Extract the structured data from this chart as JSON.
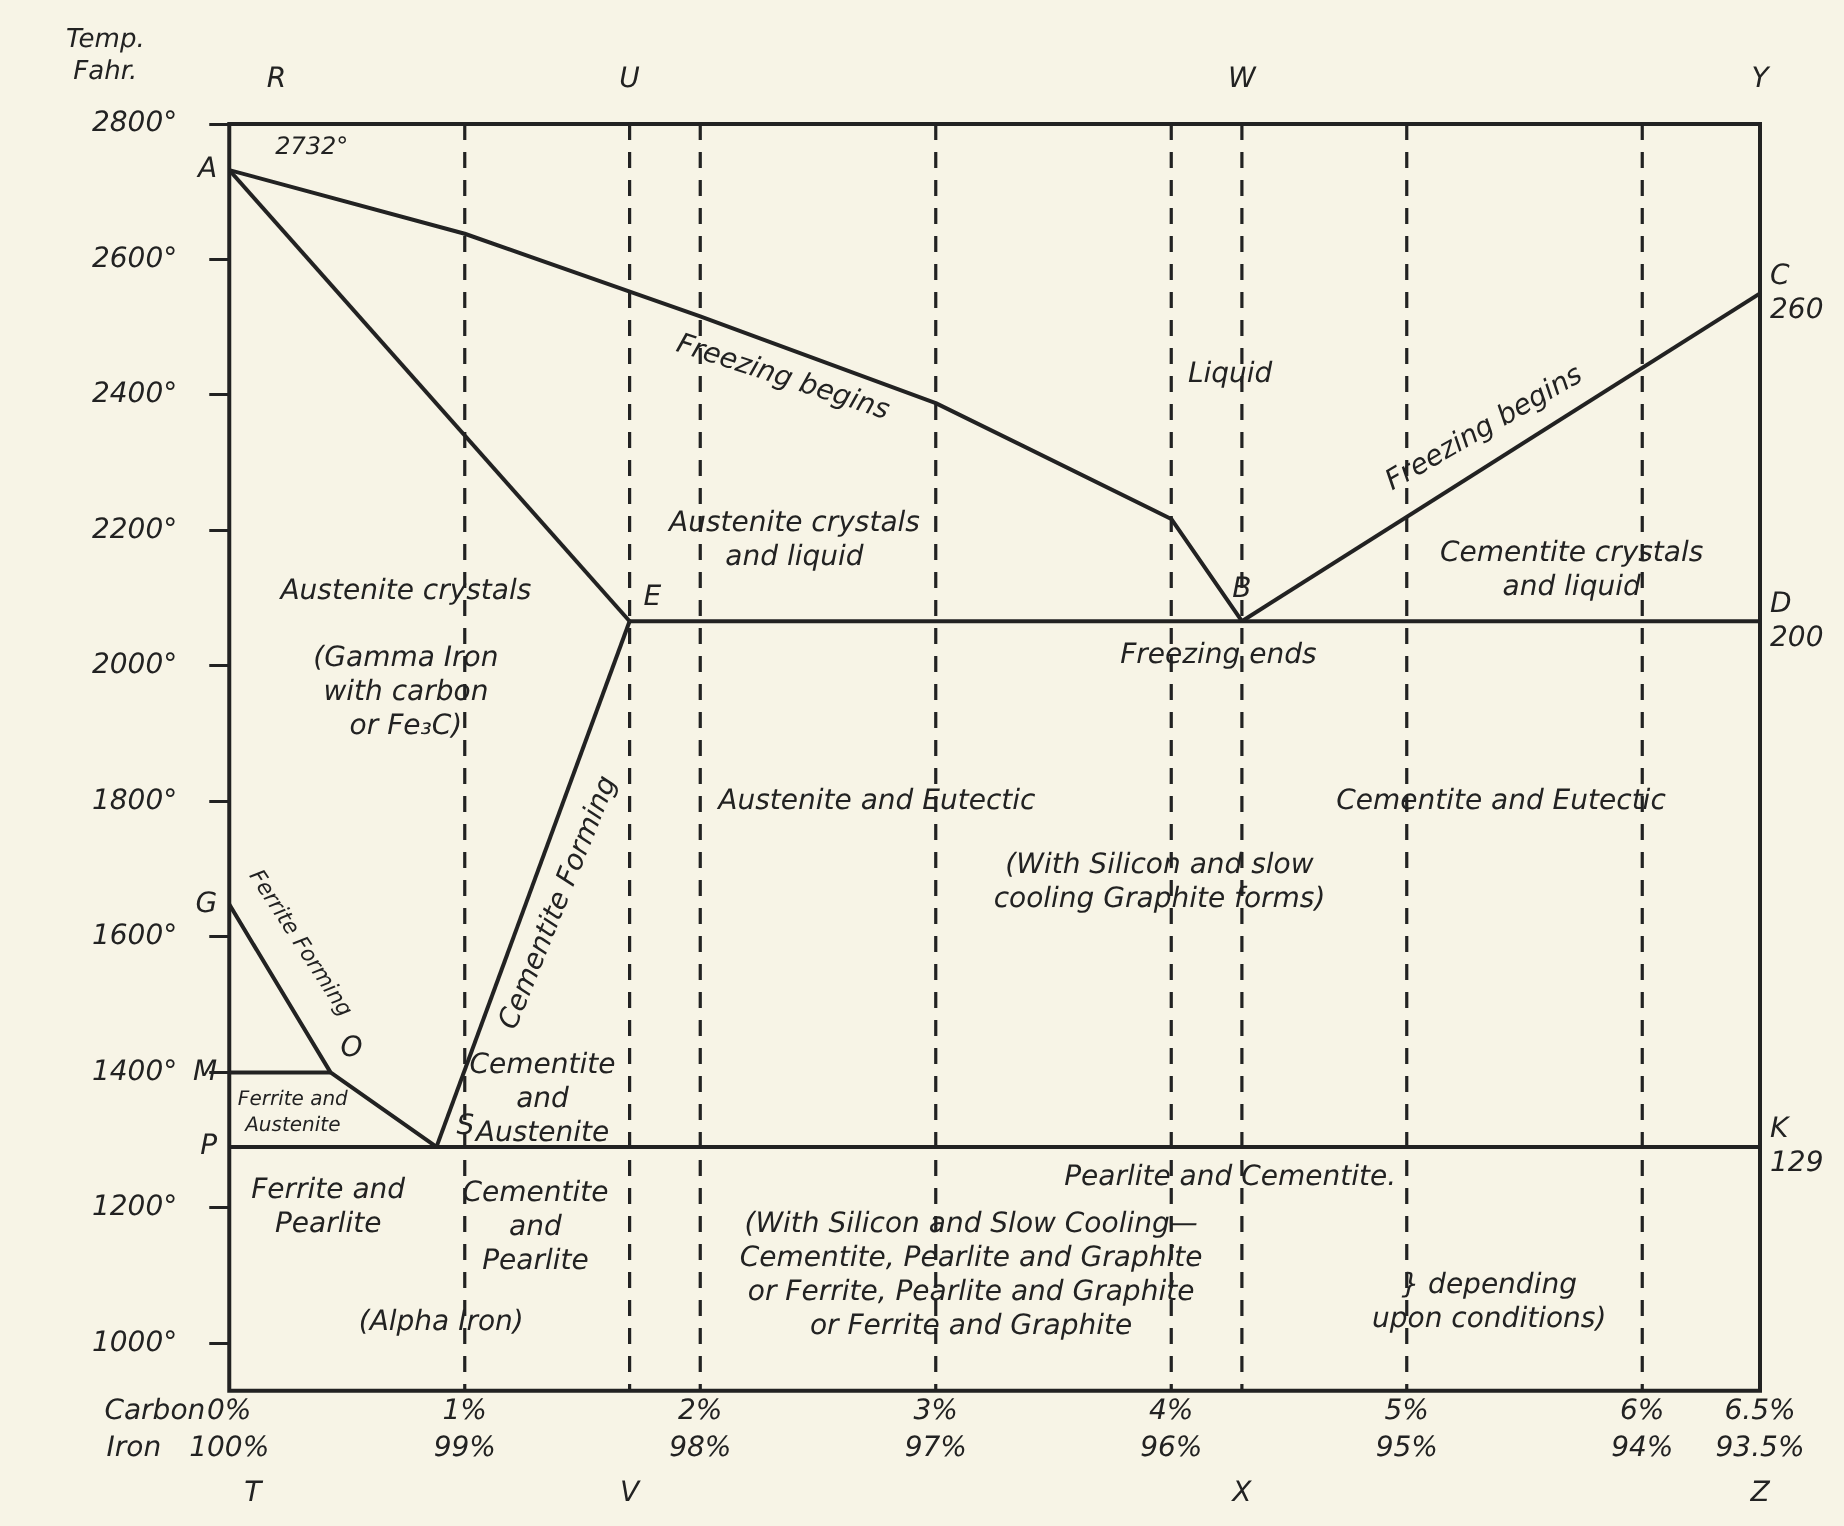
{
  "chart_data": {
    "type": "line",
    "ylabel": "Temp.\nFahr.",
    "xlabel": "Carbon",
    "x2label": "Iron",
    "xlim": [
      0,
      6.5
    ],
    "ylim": [
      930,
      2800
    ],
    "x2lim": [
      100,
      93.5
    ],
    "xticks": [
      {
        "value": 0,
        "label": "0%"
      },
      {
        "value": 1,
        "label": "1%"
      },
      {
        "value": 2,
        "label": "2%"
      },
      {
        "value": 3,
        "label": "3%"
      },
      {
        "value": 4,
        "label": "4%"
      },
      {
        "value": 5,
        "label": "5%"
      },
      {
        "value": 6,
        "label": "6%"
      },
      {
        "value": 6.5,
        "label": "6.5%"
      }
    ],
    "x2ticks": [
      {
        "value": 100,
        "label": "100%"
      },
      {
        "value": 99,
        "label": "99%"
      },
      {
        "value": 98,
        "label": "98%"
      },
      {
        "value": 97,
        "label": "97%"
      },
      {
        "value": 96,
        "label": "96%"
      },
      {
        "value": 95,
        "label": "95%"
      },
      {
        "value": 94,
        "label": "94%"
      },
      {
        "value": 93.5,
        "label": "93.5%"
      }
    ],
    "yticks": [
      {
        "value": 1000,
        "label": "1000°"
      },
      {
        "value": 1200,
        "label": "1200°"
      },
      {
        "value": 1400,
        "label": "1400°"
      },
      {
        "value": 1600,
        "label": "1600°"
      },
      {
        "value": 1800,
        "label": "1800°"
      },
      {
        "value": 2000,
        "label": "2000°"
      },
      {
        "value": 2200,
        "label": "2200°"
      },
      {
        "value": 2400,
        "label": "2400°"
      },
      {
        "value": 2600,
        "label": "2600°"
      },
      {
        "value": 2800,
        "label": "2800°"
      }
    ],
    "grid": false,
    "marker": "none",
    "line_style": "solid",
    "series": [
      {
        "color": "#222222",
        "x": [
          0,
          1,
          2,
          3,
          4,
          4.3
        ],
        "values": [
          2732,
          2638,
          2516,
          2388,
          2217,
          2066
        ]
      },
      {
        "color": "#222222",
        "x": [
          0,
          1.7
        ],
        "values": [
          2732,
          2066
        ]
      },
      {
        "color": "#222222",
        "x": [
          1.7,
          0.88
        ],
        "values": [
          2066,
          1290
        ]
      },
      {
        "color": "#222222",
        "x": [
          0,
          0.43,
          0.88
        ],
        "values": [
          1648,
          1400,
          1290
        ]
      },
      {
        "color": "#222222",
        "x": [
          0,
          0.43
        ],
        "values": [
          1400,
          1400
        ]
      },
      {
        "color": "#222222",
        "x": [
          4.3,
          6.5
        ],
        "values": [
          2066,
          2550
        ]
      },
      {
        "color": "#222222",
        "x": [
          1.7,
          6.5
        ],
        "values": [
          2066,
          2066
        ]
      },
      {
        "color": "#222222",
        "x": [
          0,
          6.5
        ],
        "values": [
          1290,
          1290
        ]
      }
    ],
    "ref_lines": [
      {
        "axis": "x",
        "value": 1,
        "color": "#222222",
        "line_style": "dashed"
      },
      {
        "axis": "x",
        "value": 2,
        "color": "#222222",
        "line_style": "dashed"
      },
      {
        "axis": "x",
        "value": 3,
        "color": "#222222",
        "line_style": "dashed"
      },
      {
        "axis": "x",
        "value": 4,
        "color": "#222222",
        "line_style": "dashed"
      },
      {
        "axis": "x",
        "value": 5,
        "color": "#222222",
        "line_style": "dashed"
      },
      {
        "axis": "x",
        "value": 6,
        "color": "#222222",
        "line_style": "dashed"
      },
      {
        "axis": "x",
        "value": 1.7,
        "color": "#222222",
        "line_style": "dashed"
      },
      {
        "axis": "x",
        "value": 4.3,
        "color": "#222222",
        "line_style": "dashed"
      }
    ],
    "annotations": [
      {
        "text": "A",
        "x": 0,
        "y": 2732
      },
      {
        "text": "G",
        "x": 0,
        "y": 1648
      },
      {
        "text": "M",
        "x": 0,
        "y": 1400
      },
      {
        "text": "P",
        "x": 0,
        "y": 1290
      },
      {
        "text": "C\n260",
        "x": 6.5,
        "y": 2550
      },
      {
        "text": "D\n200",
        "x": 6.5,
        "y": 2066
      },
      {
        "text": "K\n129",
        "x": 6.5,
        "y": 1290
      },
      {
        "text": "E",
        "x": 1.7,
        "y": 2066
      },
      {
        "text": "B",
        "x": 4.3,
        "y": 2066
      },
      {
        "text": "O",
        "x": 0.43,
        "y": 1400
      },
      {
        "text": "S",
        "x": 0.88,
        "y": 1290
      },
      "R",
      "U",
      "W",
      "Y",
      "T",
      "V",
      "X",
      "Z",
      "2732°",
      "Liquid",
      "Freezing begins",
      "Freezing begins",
      "Austenite crystals\nand liquid",
      "Cementite crystals\nand liquid",
      "Freezing ends",
      "Austenite crystals",
      "(Gamma Iron\nwith carbon\nor Fe₃C)",
      "Cementite Forming",
      "Austenite and Eutectic",
      "Cementite and Eutectic",
      "(With Silicon and slow\ncooling Graphite forms)",
      "Ferrite Forming",
      "Ferrite and\nAustenite",
      "Cementite\nand\nAustenite",
      "Ferrite and\nPearlite",
      "Cementite\nand\nPearlite",
      "(Alpha Iron)",
      "Pearlite and Cementite.",
      "(With Silicon and Slow Cooling—\nCementite, Pearlite and Graphite\nor Ferrite, Pearlite and Graphite\nor Ferrite and Graphite",
      "} depending\nupon conditions)"
    ]
  }
}
